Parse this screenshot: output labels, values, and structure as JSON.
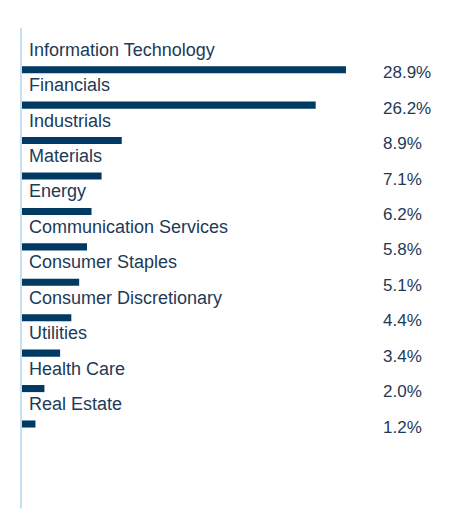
{
  "chart_data": {
    "type": "bar",
    "orientation": "horizontal",
    "categories": [
      "Information Technology",
      "Financials",
      "Industrials",
      "Materials",
      "Energy",
      "Communication Services",
      "Consumer Staples",
      "Consumer Discretionary",
      "Utilities",
      "Health Care",
      "Real Estate"
    ],
    "values": [
      28.9,
      26.2,
      8.9,
      7.1,
      6.2,
      5.8,
      5.1,
      4.4,
      3.4,
      2.0,
      1.2
    ],
    "value_labels": [
      "28.9%",
      "26.2%",
      "8.9%",
      "7.1%",
      "6.2%",
      "5.8%",
      "5.1%",
      "4.4%",
      "3.4%",
      "2.0%",
      "1.2%"
    ],
    "color": "#003a63",
    "data_labels": true,
    "tick_labels": false,
    "grid": false
  }
}
